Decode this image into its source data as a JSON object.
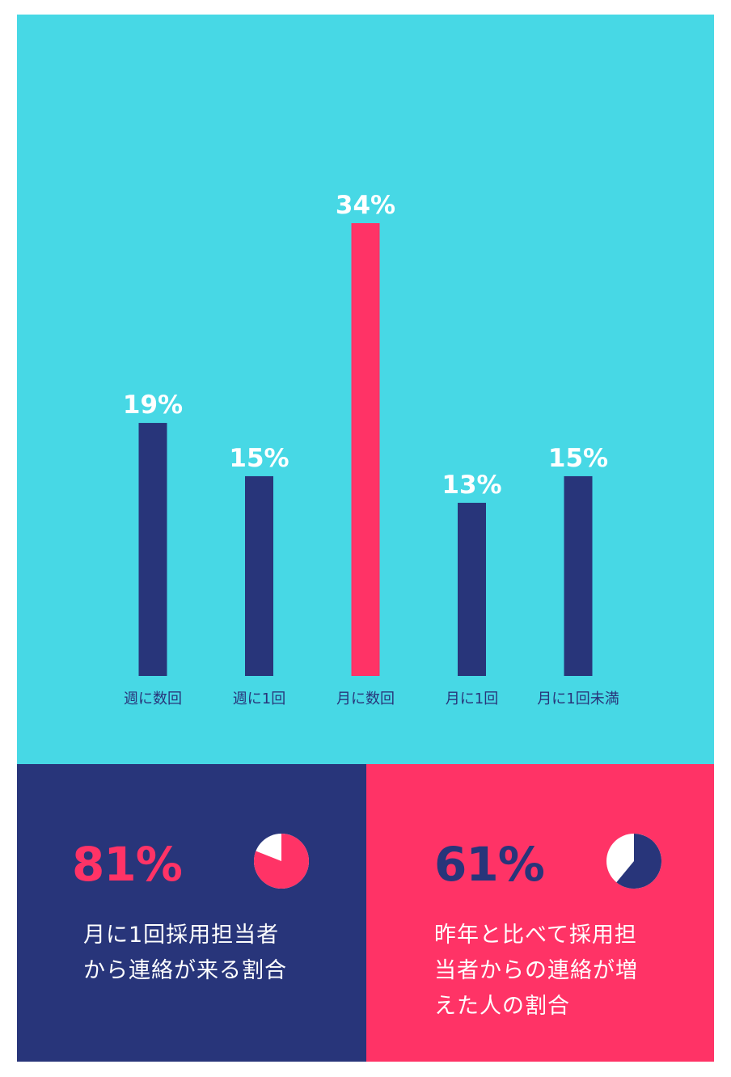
{
  "chart_data": {
    "type": "bar",
    "categories": [
      "週に数回",
      "週に1回",
      "月に数回",
      "月に1回",
      "月に1回未満"
    ],
    "values": [
      19,
      15,
      34,
      13,
      15
    ],
    "value_labels": [
      "19%",
      "15%",
      "34%",
      "13%",
      "15%"
    ],
    "highlight_index": 2,
    "colors": {
      "bar": "#28357a",
      "highlight": "#ff3366",
      "background": "#47d8e5",
      "label": "#ffffff",
      "category": "#28357a"
    },
    "ylim": [
      0,
      34
    ],
    "grid": false
  },
  "stats": [
    {
      "value": "81%",
      "fraction": 0.81,
      "caption": "月に1回採用担当者から連絡が来る割合",
      "pie_fill": "#ff3366",
      "pie_rest": "#ffffff"
    },
    {
      "value": "61%",
      "fraction": 0.61,
      "caption": "昨年と比べて採用担当者からの連絡が増えた人の割合",
      "pie_fill": "#28357a",
      "pie_rest": "#ffffff"
    }
  ]
}
